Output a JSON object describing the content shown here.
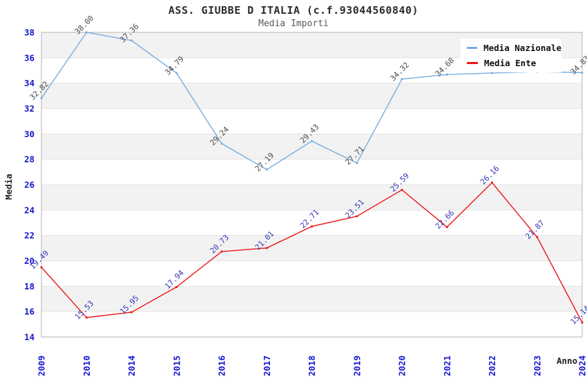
{
  "title": "ASS. GIUBBE D ITALIA (c.f.93044560840)",
  "subtitle": "Media Importi",
  "chart_data": {
    "type": "line",
    "categories": [
      "2009",
      "2010",
      "2014",
      "2015",
      "2016",
      "2017",
      "2018",
      "2019",
      "2020",
      "2021",
      "2022",
      "2023",
      "2024"
    ],
    "series": [
      {
        "name": "Media Nazionale",
        "color": "#76abe3",
        "label_color": "#4a4a4a",
        "values": [
          32.82,
          38.0,
          37.36,
          34.79,
          29.24,
          27.19,
          29.43,
          27.71,
          34.32,
          34.68,
          34.8,
          34.9,
          34.83
        ],
        "labels": [
          "32.82",
          "38.00",
          "37.36",
          "34.79",
          "29.24",
          "27.19",
          "29.43",
          "27.71",
          "34.32",
          "34.68",
          "",
          "",
          "34.83"
        ]
      },
      {
        "name": "Media Ente",
        "color": "#ed1515",
        "label_color": "#3535bb",
        "values": [
          19.49,
          15.53,
          15.95,
          17.94,
          20.73,
          21.01,
          22.71,
          23.51,
          25.59,
          22.66,
          26.16,
          21.87,
          15.14
        ],
        "labels": [
          "19.49",
          "15.53",
          "15.95",
          "17.94",
          "20.73",
          "21.01",
          "22.71",
          "23.51",
          "25.59",
          "22.66",
          "26.16",
          "21.87",
          "15.14"
        ]
      }
    ],
    "xlabel": "Anno",
    "ylabel": "Media",
    "ylim": [
      14,
      38
    ],
    "ytick_step": 2,
    "grid": true,
    "legend_position": "top-right",
    "tick_color": "#1515d0",
    "band_color": "#f2f2f2",
    "grid_color": "#e4e4e4",
    "border_color": "#b4b4b4"
  }
}
